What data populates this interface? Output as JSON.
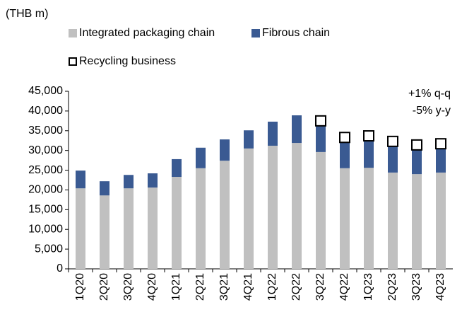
{
  "chart_data": {
    "type": "bar",
    "stacked": true,
    "unit_label": "(THB m)",
    "annotations": [
      "+1% q-q",
      "-5% y-y"
    ],
    "categories": [
      "1Q20",
      "2Q20",
      "3Q20",
      "4Q20",
      "1Q21",
      "2Q21",
      "3Q21",
      "4Q21",
      "1Q22",
      "2Q22",
      "3Q22",
      "4Q22",
      "1Q23",
      "2Q23",
      "3Q23",
      "4Q23"
    ],
    "series": [
      {
        "name": "Integrated packaging chain",
        "color": "#c0c0c0",
        "values": [
          20400,
          18600,
          20400,
          20600,
          23300,
          25500,
          27400,
          30500,
          31200,
          31900,
          29600,
          25500,
          25600,
          24400,
          24000,
          24400
        ]
      },
      {
        "name": "Fibrous chain",
        "color": "#3a5a92",
        "values": [
          4500,
          3600,
          3400,
          3600,
          4500,
          5200,
          5400,
          4600,
          6100,
          7000,
          6800,
          7300,
          7400,
          7200,
          6800,
          6600
        ]
      },
      {
        "name": "Recycling business",
        "color": "#000000",
        "marker": "square",
        "values": [
          null,
          null,
          null,
          null,
          null,
          null,
          null,
          null,
          null,
          null,
          1100,
          500,
          700,
          700,
          600,
          700
        ]
      }
    ],
    "ylim": [
      0,
      45000
    ],
    "yticks": [
      0,
      {
        "value": 5000,
        "label": "5,000"
      },
      {
        "value": 10000,
        "label": "10,000"
      },
      {
        "value": 15000,
        "label": "15,000"
      },
      {
        "value": 20000,
        "label": "20,000"
      },
      {
        "value": 25000,
        "label": "25,000"
      },
      {
        "value": 30000,
        "label": "30,000"
      },
      {
        "value": 35000,
        "label": "35,000"
      },
      {
        "value": 40000,
        "label": "40,000"
      },
      {
        "value": 45000,
        "label": "45,000"
      }
    ],
    "grid": false
  }
}
